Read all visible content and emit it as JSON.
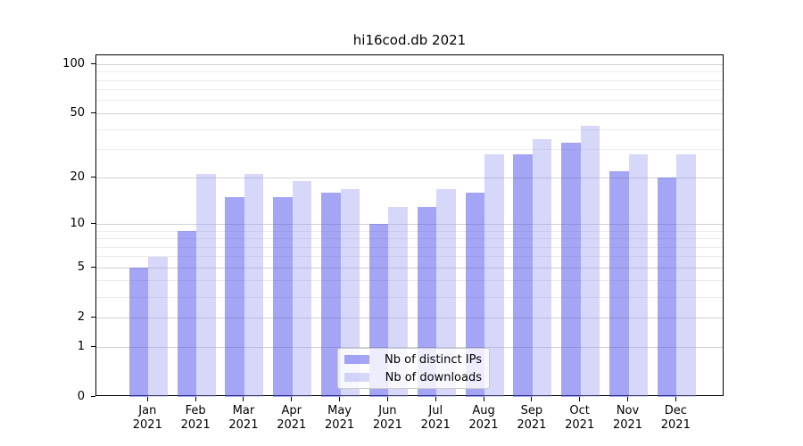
{
  "title": "hi16cod.db 2021",
  "legend": {
    "items": [
      {
        "label": "Nb of distinct IPs",
        "series_key": "ips"
      },
      {
        "label": "Nb of downloads",
        "series_key": "downloads"
      }
    ]
  },
  "y_axis": {
    "major_ticks": [
      100,
      50,
      20,
      10,
      5,
      2,
      1,
      0
    ],
    "minor_gridlines": [
      3,
      4,
      6,
      7,
      8,
      9,
      30,
      40,
      60,
      70,
      80,
      90
    ]
  },
  "x_axis": {
    "months": [
      "Jan",
      "Feb",
      "Mar",
      "Apr",
      "May",
      "Jun",
      "Jul",
      "Aug",
      "Sep",
      "Oct",
      "Nov",
      "Dec"
    ],
    "year": "2021"
  },
  "colors": {
    "ips_bar": "rgba(82,82,238,0.52)",
    "downloads_bar": "rgba(150,150,242,0.38)",
    "major_grid": "#d2d2d2",
    "minor_grid": "#ececec",
    "axis": "#000000",
    "legend_border": "#cbcbcb"
  },
  "chart_data": {
    "type": "bar",
    "title": "hi16cod.db 2021",
    "categories": [
      "Jan 2021",
      "Feb 2021",
      "Mar 2021",
      "Apr 2021",
      "May 2021",
      "Jun 2021",
      "Jul 2021",
      "Aug 2021",
      "Sep 2021",
      "Oct 2021",
      "Nov 2021",
      "Dec 2021"
    ],
    "series": [
      {
        "name": "Nb of distinct IPs",
        "values": [
          5,
          9,
          15,
          15,
          16,
          10,
          13,
          16,
          28,
          33,
          22,
          20
        ]
      },
      {
        "name": "Nb of downloads",
        "values": [
          6,
          21,
          21,
          19,
          17,
          13,
          17,
          28,
          35,
          42,
          28,
          28
        ]
      }
    ],
    "yscale": "log(1+x)",
    "ylim": [
      0,
      115
    ],
    "y_major_ticks": [
      0,
      1,
      2,
      5,
      10,
      20,
      50,
      100
    ],
    "grid": true,
    "legend_position": "inside lower center"
  }
}
